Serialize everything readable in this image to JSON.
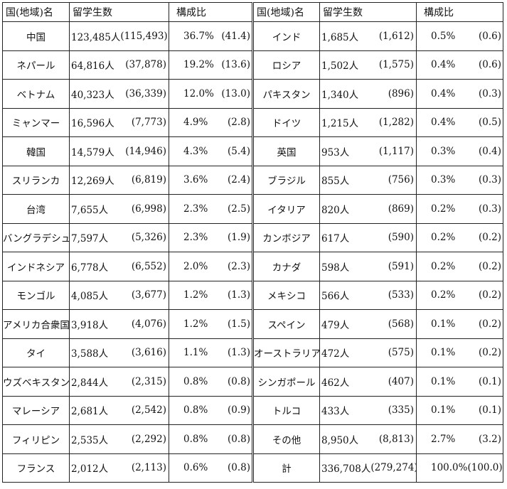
{
  "headers": {
    "country": "国(地域)名",
    "students": "留学生数",
    "ratio": "構成比"
  },
  "left_rows": [
    {
      "country": "中国",
      "count": "123,485人",
      "prev": "(115,493)",
      "pct": "36.7%",
      "prev_pct": "(41.4)"
    },
    {
      "country": "ネパール",
      "count": "64,816人",
      "prev": "(37,878)",
      "pct": "19.2%",
      "prev_pct": "(13.6)"
    },
    {
      "country": "ベトナム",
      "count": "40,323人",
      "prev": "(36,339)",
      "pct": "12.0%",
      "prev_pct": "(13.0)"
    },
    {
      "country": "ミャンマー",
      "count": "16,596人",
      "prev": "(7,773)",
      "pct": "4.9%",
      "prev_pct": "(2.8)"
    },
    {
      "country": "韓国",
      "count": "14,579人",
      "prev": "(14,946)",
      "pct": "4.3%",
      "prev_pct": "(5.4)"
    },
    {
      "country": "スリランカ",
      "count": "12,269人",
      "prev": "(6,819)",
      "pct": "3.6%",
      "prev_pct": "(2.4)"
    },
    {
      "country": "台湾",
      "count": "7,655人",
      "prev": "(6,998)",
      "pct": "2.3%",
      "prev_pct": "(2.5)"
    },
    {
      "country": "バングラデシュ",
      "count": "7,597人",
      "prev": "(5,326)",
      "pct": "2.3%",
      "prev_pct": "(1.9)"
    },
    {
      "country": "インドネシア",
      "count": "6,778人",
      "prev": "(6,552)",
      "pct": "2.0%",
      "prev_pct": "(2.3)"
    },
    {
      "country": "モンゴル",
      "count": "4,085人",
      "prev": "(3,677)",
      "pct": "1.2%",
      "prev_pct": "(1.3)"
    },
    {
      "country": "アメリカ合衆国",
      "count": "3,918人",
      "prev": "(4,076)",
      "pct": "1.2%",
      "prev_pct": "(1.5)"
    },
    {
      "country": "タイ",
      "count": "3,588人",
      "prev": "(3,616)",
      "pct": "1.1%",
      "prev_pct": "(1.3)"
    },
    {
      "country": "ウズベキスタン",
      "count": "2,844人",
      "prev": "(2,315)",
      "pct": "0.8%",
      "prev_pct": "(0.8)"
    },
    {
      "country": "マレーシア",
      "count": "2,681人",
      "prev": "(2,542)",
      "pct": "0.8%",
      "prev_pct": "(0.9)"
    },
    {
      "country": "フィリピン",
      "count": "2,535人",
      "prev": "(2,292)",
      "pct": "0.8%",
      "prev_pct": "(0.8)"
    },
    {
      "country": "フランス",
      "count": "2,012人",
      "prev": "(2,113)",
      "pct": "0.6%",
      "prev_pct": "(0.8)"
    }
  ],
  "right_rows": [
    {
      "country": "インド",
      "count": "1,685人",
      "prev": "(1,612)",
      "pct": "0.5%",
      "prev_pct": "(0.6)"
    },
    {
      "country": "ロシア",
      "count": "1,502人",
      "prev": "(1,575)",
      "pct": "0.4%",
      "prev_pct": "(0.6)"
    },
    {
      "country": "パキスタン",
      "count": "1,340人",
      "prev": "(896)",
      "pct": "0.4%",
      "prev_pct": "(0.3)"
    },
    {
      "country": "ドイツ",
      "count": "1,215人",
      "prev": "(1,282)",
      "pct": "0.4%",
      "prev_pct": "(0.5)"
    },
    {
      "country": "英国",
      "count": "953人",
      "prev": "(1,117)",
      "pct": "0.3%",
      "prev_pct": "(0.4)"
    },
    {
      "country": "ブラジル",
      "count": "855人",
      "prev": "(756)",
      "pct": "0.3%",
      "prev_pct": "(0.3)"
    },
    {
      "country": "イタリア",
      "count": "820人",
      "prev": "(869)",
      "pct": "0.2%",
      "prev_pct": "(0.3)"
    },
    {
      "country": "カンボジア",
      "count": "617人",
      "prev": "(590)",
      "pct": "0.2%",
      "prev_pct": "(0.2)"
    },
    {
      "country": "カナダ",
      "count": "598人",
      "prev": "(591)",
      "pct": "0.2%",
      "prev_pct": "(0.2)"
    },
    {
      "country": "メキシコ",
      "count": "566人",
      "prev": "(533)",
      "pct": "0.2%",
      "prev_pct": "(0.2)"
    },
    {
      "country": "スペイン",
      "count": "479人",
      "prev": "(568)",
      "pct": "0.1%",
      "prev_pct": "(0.2)"
    },
    {
      "country": "オーストラリア",
      "count": "472人",
      "prev": "(575)",
      "pct": "0.1%",
      "prev_pct": "(0.2)"
    },
    {
      "country": "シンガポール",
      "count": "462人",
      "prev": "(407)",
      "pct": "0.1%",
      "prev_pct": "(0.1)"
    },
    {
      "country": "トルコ",
      "count": "433人",
      "prev": "(335)",
      "pct": "0.1%",
      "prev_pct": "(0.1)"
    },
    {
      "country": "その他",
      "count": "8,950人",
      "prev": "(8,813)",
      "pct": "2.7%",
      "prev_pct": "(3.2)"
    },
    {
      "country": "計",
      "count": "336,708人",
      "prev": "(279,274)",
      "pct": "100.0%",
      "prev_pct": "(100.0)"
    }
  ]
}
